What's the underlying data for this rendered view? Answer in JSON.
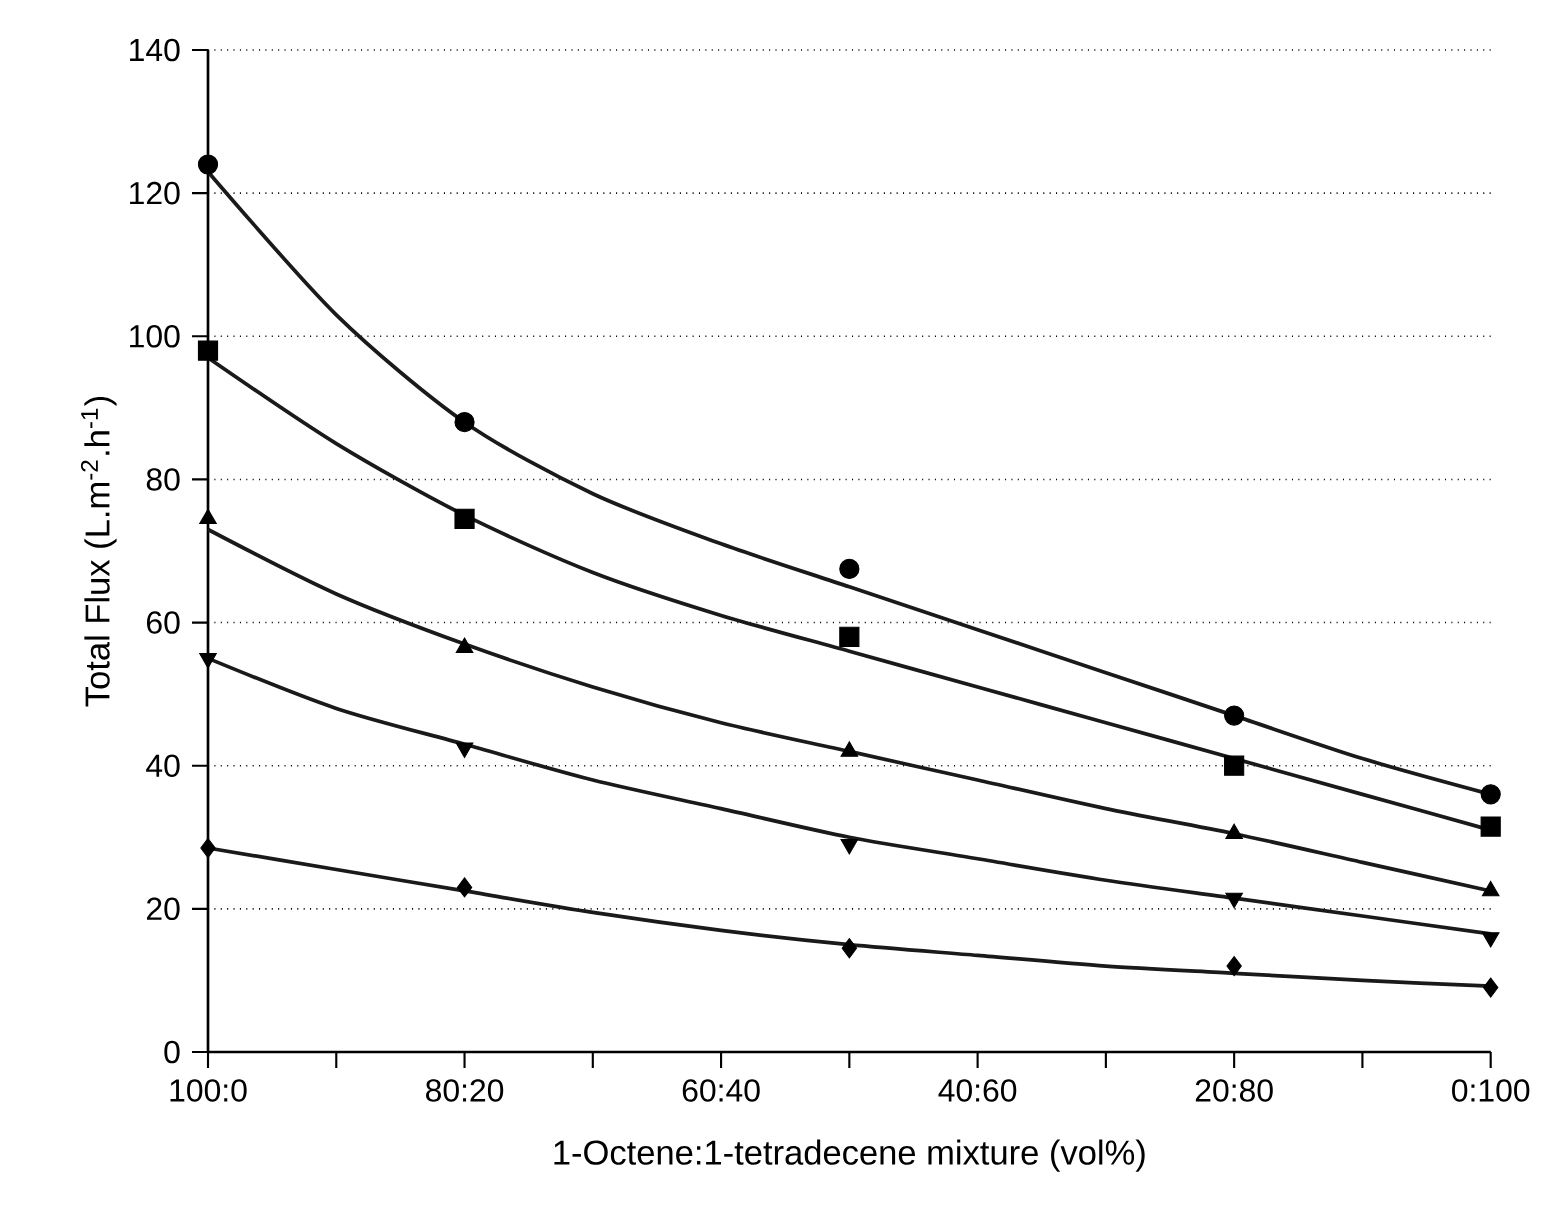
{
  "chart_data": {
    "type": "scatter",
    "xlabel": "1-Octene:1-tetradecene mixture (vol%)",
    "ylabel": "Total Flux (L.m$^{-2}$.h$^{-1}$)",
    "categories": [
      "100:0",
      null,
      "80:20",
      null,
      "60:40",
      null,
      "40:60",
      null,
      "20:80",
      null,
      "0:100"
    ],
    "ylim": [
      0,
      140
    ],
    "yticks": [
      0,
      20,
      40,
      60,
      80,
      100,
      120,
      140
    ],
    "grid": "y",
    "series": [
      {
        "marker": "circle",
        "color": "#000000",
        "values": [
          124,
          null,
          88,
          null,
          null,
          67.5,
          null,
          null,
          47,
          null,
          36
        ]
      },
      {
        "marker": "square",
        "color": "#000000",
        "values": [
          98,
          null,
          74.5,
          null,
          null,
          58,
          null,
          null,
          40,
          null,
          31.5
        ]
      },
      {
        "marker": "triangle",
        "color": "#000000",
        "values": [
          74.5,
          null,
          56.5,
          null,
          null,
          42,
          null,
          null,
          30.5,
          null,
          22.5
        ]
      },
      {
        "marker": "triangle-down",
        "color": "#000000",
        "values": [
          55,
          null,
          42.5,
          null,
          null,
          29,
          null,
          null,
          21.5,
          null,
          16
        ]
      },
      {
        "marker": "diamond",
        "color": "#000000",
        "values": [
          28.5,
          null,
          23,
          null,
          null,
          14.5,
          null,
          null,
          12,
          null,
          9
        ]
      },
      {
        "type": "line",
        "line_style": "solid",
        "color": "#1a1a1a",
        "values": [
          123,
          103,
          88,
          78,
          71,
          65,
          59,
          53,
          47,
          41,
          36
        ]
      },
      {
        "type": "line",
        "line_style": "solid",
        "color": "#1a1a1a",
        "values": [
          97,
          85,
          75,
          67,
          61,
          56,
          51,
          46,
          41,
          36,
          31
        ]
      },
      {
        "type": "line",
        "line_style": "solid",
        "color": "#1a1a1a",
        "values": [
          73,
          64,
          57,
          51,
          46,
          42,
          38,
          34,
          30.5,
          26.5,
          22.5
        ]
      },
      {
        "type": "line",
        "line_style": "solid",
        "color": "#1a1a1a",
        "values": [
          55,
          48,
          43,
          38,
          34,
          30,
          27,
          24,
          21.5,
          19,
          16.5
        ]
      },
      {
        "type": "line",
        "line_style": "solid",
        "color": "#1a1a1a",
        "values": [
          28.5,
          25.5,
          22.5,
          19.5,
          17,
          15,
          13.5,
          12,
          11,
          10,
          9.2
        ]
      }
    ]
  }
}
